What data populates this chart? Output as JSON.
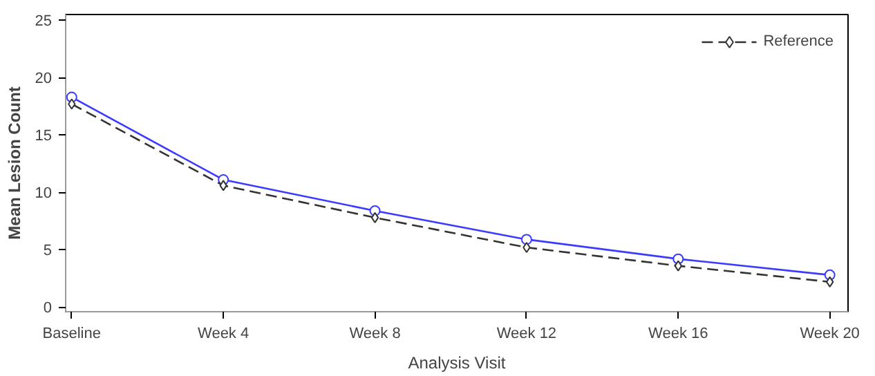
{
  "chart_data": {
    "type": "line",
    "xlabel": "Analysis Visit",
    "ylabel": "Mean Lesion Count",
    "categories": [
      "Baseline",
      "Week 4",
      "Week 8",
      "Week 12",
      "Week 16",
      "Week 20"
    ],
    "series": [
      {
        "color": "#3b3bff",
        "marker": "circle",
        "line_style": "solid",
        "values": [
          18.3,
          11.1,
          8.4,
          5.9,
          4.2,
          2.8
        ]
      },
      {
        "name": "Reference",
        "color": "#333333",
        "marker": "diamond",
        "line_style": "dashed",
        "values": [
          17.7,
          10.6,
          7.8,
          5.2,
          3.6,
          2.2
        ]
      }
    ],
    "ylim": [
      -0.4,
      25.5
    ],
    "yticks": [
      0,
      5,
      10,
      15,
      20,
      25
    ],
    "grid": false,
    "legend": "top right"
  }
}
